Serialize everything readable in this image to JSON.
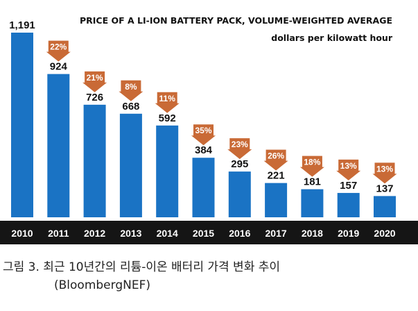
{
  "chart_data": {
    "type": "bar",
    "title": "PRICE OF A LI-ION BATTERY PACK, VOLUME-WEIGHTED AVERAGE",
    "subtitle": "dollars per kilowatt hour",
    "categories": [
      "2010",
      "2011",
      "2012",
      "2013",
      "2014",
      "2015",
      "2016",
      "2017",
      "2018",
      "2019",
      "2020"
    ],
    "values": [
      1191,
      924,
      726,
      668,
      592,
      384,
      295,
      221,
      181,
      157,
      137
    ],
    "value_labels": [
      "1,191",
      "924",
      "726",
      "668",
      "592",
      "384",
      "295",
      "221",
      "181",
      "157",
      "137"
    ],
    "declines": [
      "",
      "22%",
      "21%",
      "8%",
      "11%",
      "35%",
      "23%",
      "26%",
      "18%",
      "13%",
      "13%"
    ],
    "ylim": [
      0,
      1191
    ],
    "colors": {
      "bar": "#1a73c4",
      "arrow": "#c96a36",
      "axis_band": "#151515",
      "value_text": "#111111",
      "tick_text": "#ffffff"
    },
    "grid": false
  },
  "caption": {
    "line1": "그림 3.  최근 10년간의 리튬-이온 배터리 가격 변화 추이",
    "line2": "(BloombergNEF)"
  }
}
